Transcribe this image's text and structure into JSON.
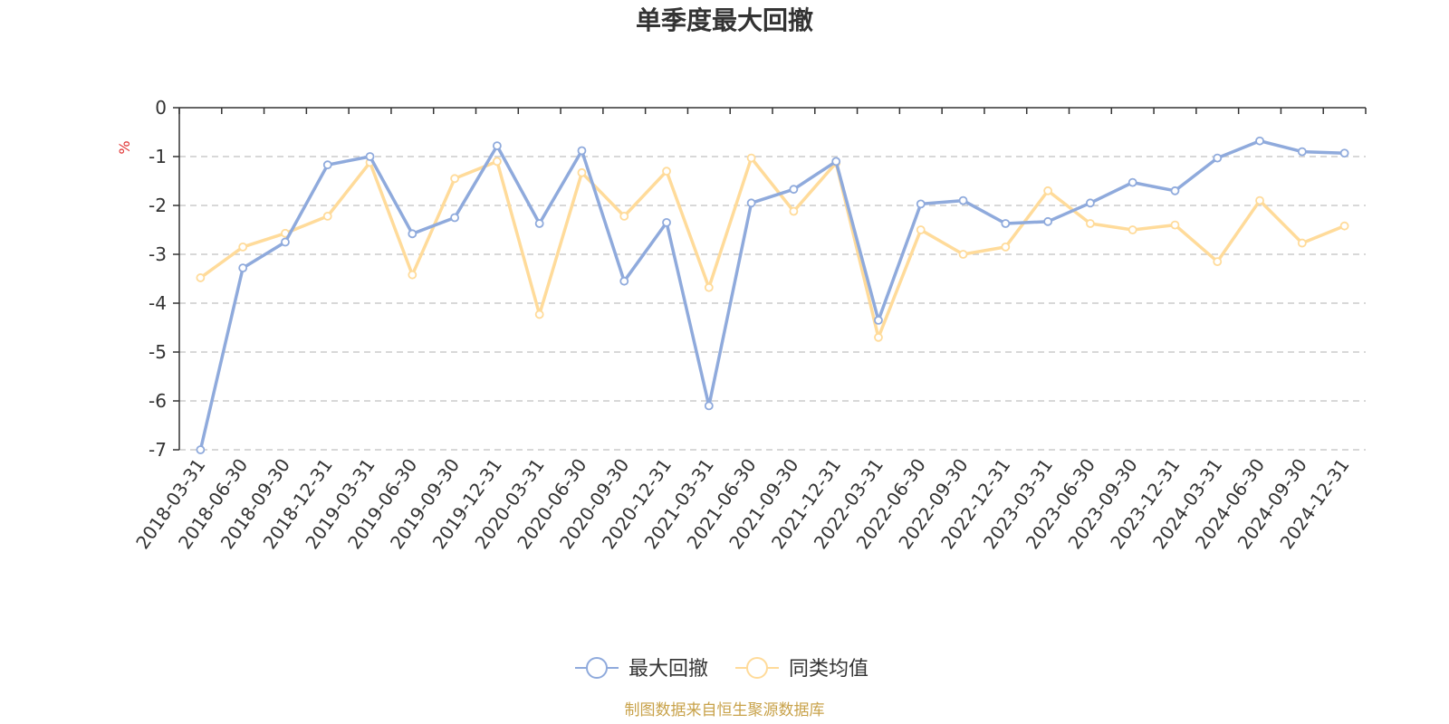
{
  "chart_data": {
    "type": "line",
    "title": "单季度最大回撤",
    "ylabel": "%",
    "ylim": [
      -7,
      0
    ],
    "yticks": [
      0,
      -1,
      -2,
      -3,
      -4,
      -5,
      -6,
      -7
    ],
    "ytick_labels": [
      "0",
      "-1",
      "-2",
      "-3",
      "-4",
      "-5",
      "-6",
      "-7"
    ],
    "grid": true,
    "legend_position": "bottom-center",
    "categories": [
      "2018-03-31",
      "2018-06-30",
      "2018-09-30",
      "2018-12-31",
      "2019-03-31",
      "2019-06-30",
      "2019-09-30",
      "2019-12-31",
      "2020-03-31",
      "2020-06-30",
      "2020-09-30",
      "2020-12-31",
      "2021-03-31",
      "2021-06-30",
      "2021-09-30",
      "2021-12-31",
      "2022-03-31",
      "2022-06-30",
      "2022-09-30",
      "2022-12-31",
      "2023-03-31",
      "2023-06-30",
      "2023-09-30",
      "2023-12-31",
      "2024-03-31",
      "2024-06-30",
      "2024-09-30",
      "2024-12-31"
    ],
    "series": [
      {
        "name": "最大回撤",
        "color": "#8FAADC",
        "values": [
          -7.0,
          -3.28,
          -2.75,
          -1.17,
          -1.0,
          -2.58,
          -2.25,
          -0.78,
          -2.37,
          -0.88,
          -3.55,
          -2.35,
          -6.1,
          -1.95,
          -1.67,
          -1.1,
          -4.35,
          -1.97,
          -1.9,
          -2.37,
          -2.33,
          -1.95,
          -1.53,
          -1.7,
          -1.03,
          -0.68,
          -0.9,
          -0.93
        ]
      },
      {
        "name": "同类均值",
        "color": "#FFDB9A",
        "values": [
          -3.48,
          -2.85,
          -2.57,
          -2.22,
          -1.12,
          -3.42,
          -1.45,
          -1.1,
          -4.23,
          -1.33,
          -2.22,
          -1.3,
          -3.68,
          -1.03,
          -2.12,
          -1.13,
          -4.7,
          -2.5,
          -3.0,
          -2.85,
          -1.7,
          -2.37,
          -2.5,
          -2.4,
          -3.15,
          -1.9,
          -2.77,
          -2.42
        ]
      }
    ],
    "source": "制图数据来自恒生聚源数据库",
    "colors": {
      "axis": "#333333",
      "grid": "#CCCCCC",
      "unit": "#E03030",
      "source": "#C8A24A"
    }
  }
}
